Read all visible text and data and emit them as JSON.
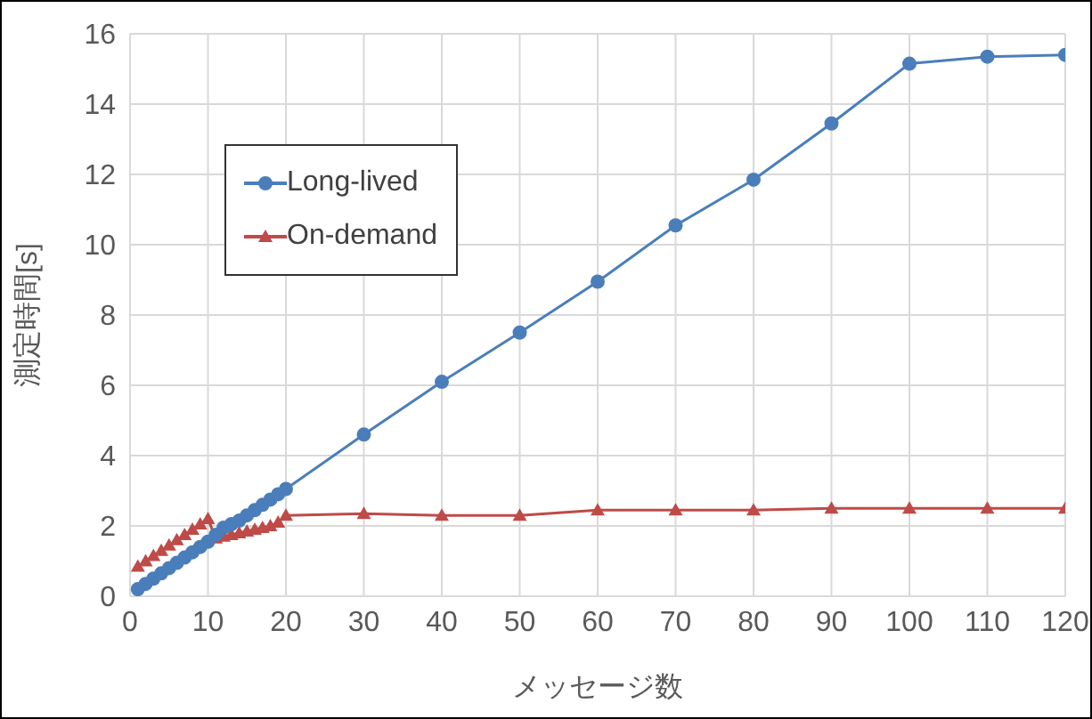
{
  "chart_data": {
    "type": "line",
    "xlabel": "メッセージ数",
    "ylabel": "測定時間[s]",
    "xlim": [
      0,
      120
    ],
    "xticks": [
      0,
      10,
      20,
      30,
      40,
      50,
      60,
      70,
      80,
      90,
      100,
      110,
      120
    ],
    "ylim": [
      0,
      16
    ],
    "yticks": [
      0,
      2,
      4,
      6,
      8,
      10,
      12,
      14,
      16
    ],
    "grid": true,
    "legend": "top left",
    "series": [
      {
        "name": "Long-lived",
        "color": "#4a7ebb",
        "marker": "circle",
        "x": [
          1,
          2,
          3,
          4,
          5,
          6,
          7,
          8,
          9,
          10,
          11,
          12,
          13,
          14,
          15,
          16,
          17,
          18,
          19,
          20,
          30,
          40,
          50,
          60,
          70,
          80,
          90,
          100,
          110,
          120
        ],
        "values": [
          0.2,
          0.35,
          0.5,
          0.65,
          0.8,
          0.95,
          1.1,
          1.25,
          1.4,
          1.55,
          1.75,
          1.95,
          2.05,
          2.15,
          2.3,
          2.45,
          2.6,
          2.75,
          2.9,
          3.05,
          4.6,
          6.1,
          7.5,
          8.95,
          10.55,
          11.85,
          13.45,
          15.15,
          15.35,
          15.4
        ]
      },
      {
        "name": "On-demand",
        "color": "#be4b48",
        "marker": "triangle",
        "x": [
          1,
          2,
          3,
          4,
          5,
          6,
          7,
          8,
          9,
          10,
          11,
          12,
          13,
          14,
          15,
          16,
          17,
          18,
          19,
          20,
          30,
          40,
          50,
          60,
          70,
          80,
          90,
          100,
          110,
          120
        ],
        "values": [
          0.85,
          1.0,
          1.15,
          1.3,
          1.45,
          1.6,
          1.75,
          1.9,
          2.05,
          2.2,
          1.65,
          1.7,
          1.75,
          1.8,
          1.85,
          1.9,
          1.95,
          2.0,
          2.1,
          2.3,
          2.35,
          2.3,
          2.3,
          2.45,
          2.45,
          2.45,
          2.5,
          2.5,
          2.5,
          2.5
        ]
      }
    ]
  }
}
